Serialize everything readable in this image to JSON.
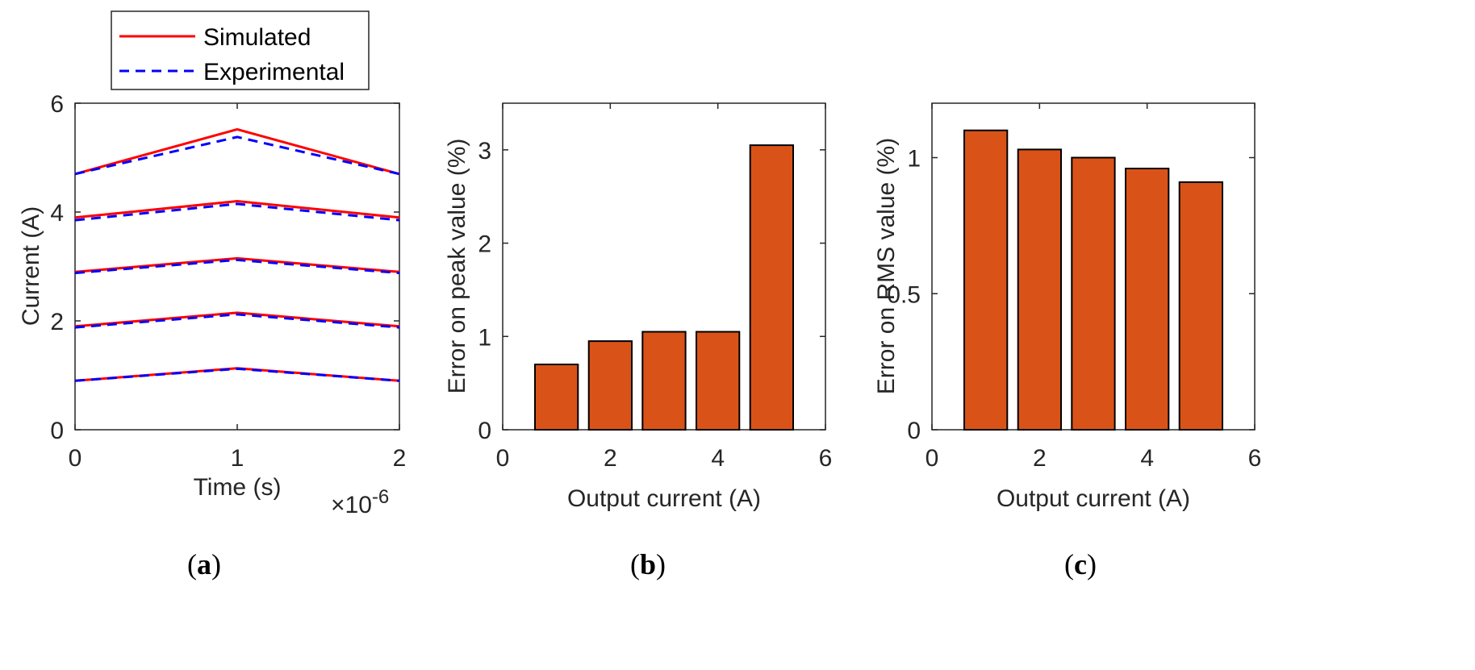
{
  "chart_data": [
    {
      "type": "line",
      "panel": "a",
      "panel_label": "a",
      "title": "",
      "xlabel": "Time (s)",
      "ylabel": "Current (A)",
      "x_exponent_prefix": "×10",
      "x_exponent_power": "-6",
      "xlim": [
        0,
        2
      ],
      "ylim": [
        0,
        6
      ],
      "xticks": [
        0,
        1,
        2
      ],
      "yticks": [
        0,
        2,
        4,
        6
      ],
      "legend": {
        "placement": "above",
        "entries": [
          "Simulated",
          "Experimental"
        ]
      },
      "colors": {
        "simulated": "#ff0000",
        "experimental": "#0000ff"
      },
      "x": [
        0,
        1,
        2
      ],
      "series": [
        {
          "name": "Simulated",
          "style": "solid",
          "curves": [
            [
              0.9,
              1.13,
              0.9
            ],
            [
              1.9,
              2.15,
              1.9
            ],
            [
              2.9,
              3.15,
              2.9
            ],
            [
              3.9,
              4.2,
              3.9
            ],
            [
              4.7,
              5.52,
              4.7
            ]
          ]
        },
        {
          "name": "Experimental",
          "style": "dashed",
          "curves": [
            [
              0.9,
              1.12,
              0.9
            ],
            [
              1.88,
              2.12,
              1.88
            ],
            [
              2.88,
              3.12,
              2.88
            ],
            [
              3.85,
              4.15,
              3.85
            ],
            [
              4.7,
              5.38,
              4.7
            ]
          ]
        }
      ]
    },
    {
      "type": "bar",
      "panel": "b",
      "panel_label": "b",
      "title": "",
      "xlabel": "Output current (A)",
      "ylabel": "Error on peak value (%)",
      "xlim": [
        0,
        6
      ],
      "ylim": [
        0,
        3.5
      ],
      "xticks": [
        0,
        2,
        4,
        6
      ],
      "yticks": [
        0,
        1,
        2,
        3
      ],
      "bar_color": "#d95319",
      "x": [
        1,
        2,
        3,
        4,
        5
      ],
      "values": [
        0.7,
        0.95,
        1.05,
        1.05,
        3.05
      ]
    },
    {
      "type": "bar",
      "panel": "c",
      "panel_label": "c",
      "title": "",
      "xlabel": "Output current (A)",
      "ylabel": "Error on RMS value (%)",
      "xlim": [
        0,
        6
      ],
      "ylim": [
        0,
        1.2
      ],
      "xticks": [
        0,
        2,
        4,
        6
      ],
      "yticks": [
        0,
        0.5,
        1
      ],
      "bar_color": "#d95319",
      "x": [
        1,
        2,
        3,
        4,
        5
      ],
      "values": [
        1.1,
        1.03,
        1.0,
        0.96,
        0.91
      ]
    }
  ]
}
